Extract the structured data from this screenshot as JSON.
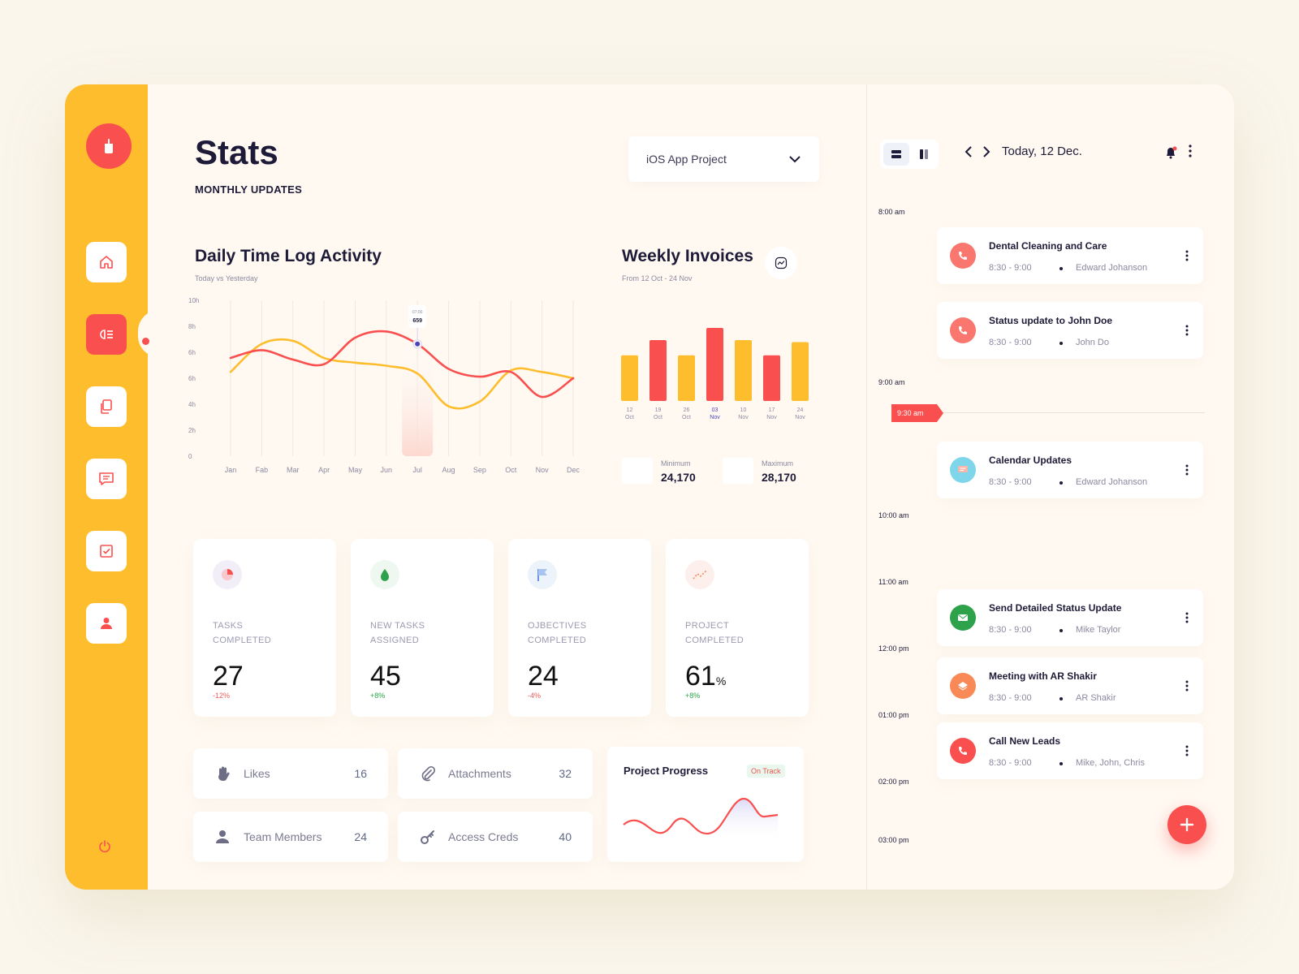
{
  "header": {
    "title": "Stats",
    "subtitle": "MONTHLY UPDATES",
    "project_select": "iOS App Project"
  },
  "colors": {
    "sidebar": "#fdbd2c",
    "accent_red": "#f9504f",
    "accent_yellow": "#fdbd2c",
    "positive": "#2ea24a",
    "negative": "#f15c5c"
  },
  "daily_log": {
    "title": "Daily Time Log Activity",
    "subtitle": "Today vs Yesterday",
    "tooltip_label": "07:00",
    "tooltip_value": "659"
  },
  "weekly": {
    "title": "Weekly Invoices",
    "subtitle": "From 12 Oct - 24 Nov",
    "min_label": "Minimum",
    "min_value": "24,170",
    "max_label": "Maximum",
    "max_value": "28,170"
  },
  "chart_data": [
    {
      "type": "line",
      "title": "Daily Time Log Activity",
      "subtitle": "Today vs Yesterday",
      "x": [
        "Jan",
        "Fab",
        "Mar",
        "Apr",
        "May",
        "Jun",
        "Jul",
        "Aug",
        "Sep",
        "Oct",
        "Nov",
        "Dec"
      ],
      "y_ticks": [
        "0",
        "2h",
        "4h",
        "6h",
        "6h",
        "8h",
        "10h"
      ],
      "ylim": [
        0,
        10
      ],
      "grid": true,
      "series": [
        {
          "color": "#f9504f",
          "values": [
            6.3,
            6.8,
            6.2,
            5.9,
            7.6,
            8.0,
            7.2,
            5.6,
            5.1,
            5.4,
            3.8,
            5.0
          ]
        },
        {
          "color": "#fdbd2c",
          "values": [
            5.4,
            7.2,
            7.4,
            6.3,
            6.0,
            5.8,
            5.3,
            3.2,
            3.5,
            5.5,
            5.4,
            5.0
          ]
        }
      ]
    },
    {
      "type": "bar",
      "title": "Weekly Invoices",
      "subtitle": "From 12 Oct - 24 Nov",
      "categories": [
        {
          "day": "12",
          "month": "Oct"
        },
        {
          "day": "19",
          "month": "Oct"
        },
        {
          "day": "26",
          "month": "Oct"
        },
        {
          "day": "03",
          "month": "Nov"
        },
        {
          "day": "10",
          "month": "Nov"
        },
        {
          "day": "17",
          "month": "Nov"
        },
        {
          "day": "24",
          "month": "Nov"
        }
      ],
      "values": [
        45,
        60,
        45,
        72,
        60,
        45,
        58
      ],
      "colors": [
        "#fdbd2c",
        "#f9504f",
        "#fdbd2c",
        "#f9504f",
        "#fdbd2c",
        "#f9504f",
        "#fdbd2c"
      ],
      "highlight_index": 3
    }
  ],
  "stats": [
    {
      "label_line1": "TASKS",
      "label_line2": "COMPLETED",
      "value": "27",
      "suffix": "",
      "delta": "-12%",
      "icon": "pie-chart-icon"
    },
    {
      "label_line1": "NEW TASKS",
      "label_line2": "ASSIGNED",
      "value": "45",
      "suffix": "",
      "delta": "+8%",
      "icon": "leaf-icon"
    },
    {
      "label_line1": "OJBECTIVES",
      "label_line2": "COMPLETED",
      "value": "24",
      "suffix": "",
      "delta": "-4%",
      "icon": "flag-icon"
    },
    {
      "label_line1": "PROJECT",
      "label_line2": "COMPLETED",
      "value": "61",
      "suffix": "%",
      "delta": "+8%",
      "icon": "trend-icon"
    }
  ],
  "mini": [
    {
      "label": "Likes",
      "value": "16",
      "icon": "hand-icon"
    },
    {
      "label": "Attachments",
      "value": "32",
      "icon": "paperclip-icon"
    },
    {
      "label": "Team Members",
      "value": "24",
      "icon": "user-icon"
    },
    {
      "label": "Access Creds",
      "value": "40",
      "icon": "key-icon"
    }
  ],
  "progress": {
    "title": "Project Progress",
    "badge": "On Track"
  },
  "calendar": {
    "date_label": "Today, 12 Dec.",
    "now_label": "9:30 am",
    "times": [
      "8:00 am",
      "9:00 am",
      "10:00 am",
      "11:00 am",
      "12:00 pm",
      "01:00 pm",
      "02:00 pm",
      "03:00 pm"
    ],
    "events": [
      {
        "title": "Dental Cleaning and Care",
        "time": "8:30 - 9:00",
        "person": "Edward Johanson",
        "icon": "phone-icon",
        "color": "#f9776e"
      },
      {
        "title": "Status update to John Doe",
        "time": "8:30 - 9:00",
        "person": "John Do",
        "icon": "phone-icon",
        "color": "#f9776e"
      },
      {
        "title": "Calendar Updates",
        "time": "8:30 - 9:00",
        "person": "Edward Johanson",
        "icon": "chat-icon",
        "color": "#7fd6ea"
      },
      {
        "title": "Send Detailed Status Update",
        "time": "8:30 - 9:00",
        "person": "Mike Taylor",
        "icon": "mail-icon",
        "color": "#2ea24a"
      },
      {
        "title": "Meeting with AR Shakir",
        "time": "8:30 - 9:00",
        "person": "AR Shakir",
        "icon": "layers-icon",
        "color": "#f98a58"
      },
      {
        "title": "Call New Leads",
        "time": "8:30 - 9:00",
        "person": "Mike, John, Chris",
        "icon": "phone-icon",
        "color": "#f9504f"
      }
    ]
  }
}
